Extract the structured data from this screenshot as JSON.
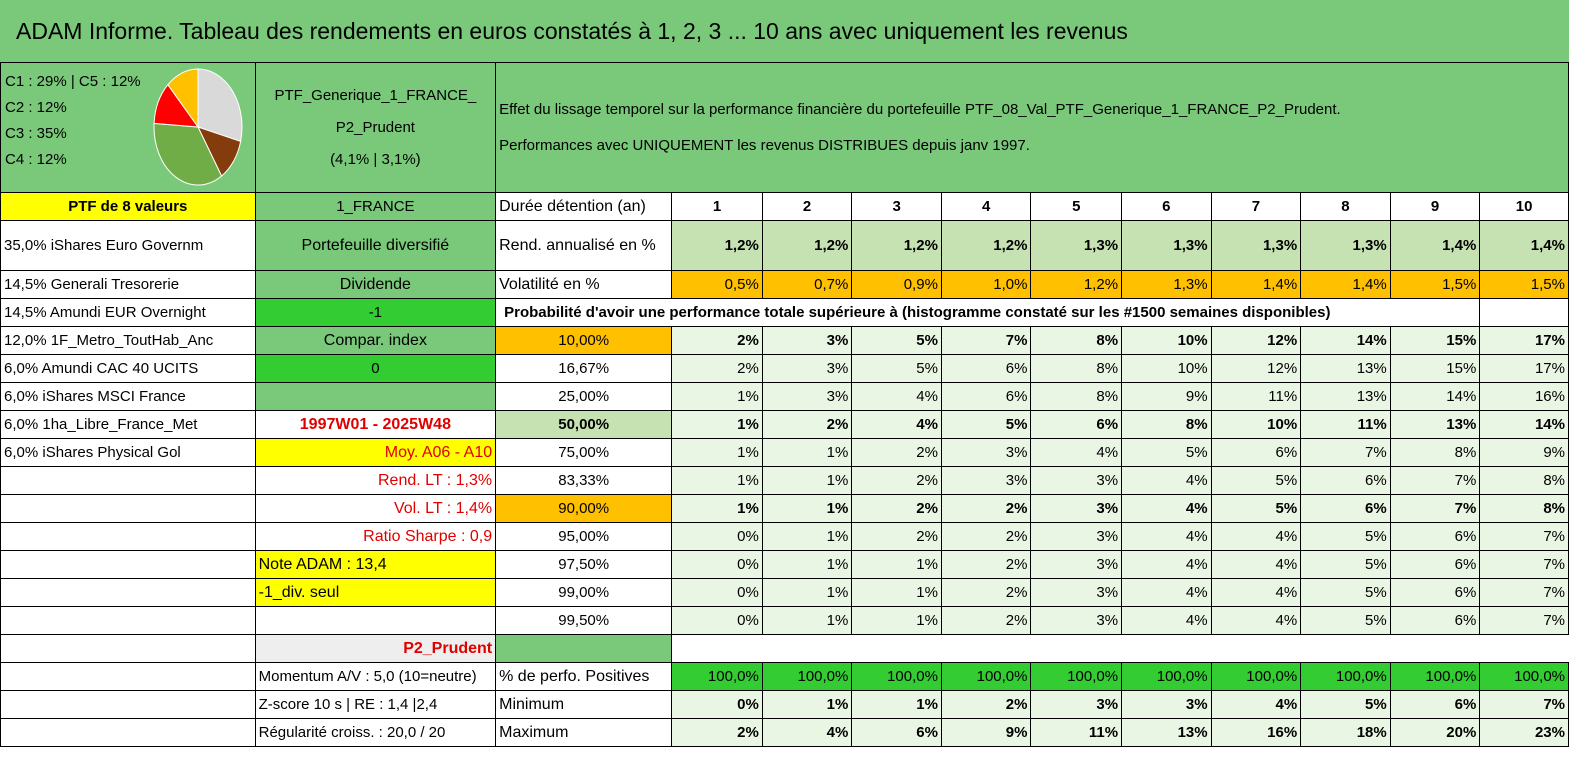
{
  "title": "ADAM Informe. Tableau des rendements en euros constatés à 1, 2, 3 ... 10 ans avec uniquement les revenus",
  "legend": [
    "C1 : 29% | C5 : 12%",
    "C2 : 12%",
    "C3 : 35%",
    "C4 : 12%"
  ],
  "pie": {
    "slices": [
      {
        "name": "C1",
        "value": 29,
        "color": "#d9d9d9"
      },
      {
        "name": "C2",
        "value": 12,
        "color": "#843c0c"
      },
      {
        "name": "C3",
        "value": 35,
        "color": "#70ad47"
      },
      {
        "name": "C4",
        "value": 12,
        "color": "#ff0000"
      },
      {
        "name": "C5",
        "value": 12,
        "color": "#ffc000"
      }
    ]
  },
  "ptf": {
    "name_line1": "PTF_Generique_1_FRANCE_",
    "name_line2": "P2_Prudent",
    "name_line3": "(4,1% | 3,1%)",
    "count": "PTF de 8 valeurs",
    "code": "1_FRANCE"
  },
  "description": {
    "line1": "Effet du lissage temporel sur la performance financière du portefeuille PTF_08_Val_PTF_Generique_1_FRANCE_P2_Prudent.",
    "line2": "Performances avec UNIQUEMENT les revenus DISTRIBUES depuis janv 1997."
  },
  "holdings": [
    "35,0% iShares Euro Governm",
    "14,5% Generali Tresorerie",
    "14,5% Amundi EUR Overnight",
    "12,0% 1F_Metro_ToutHab_Anc",
    "6,0% Amundi CAC 40 UCITS",
    "6,0% iShares MSCI France",
    "6,0% 1ha_Libre_France_Met",
    "6,0% iShares Physical Gol"
  ],
  "info": {
    "portefeuille": "Portefeuille diversifié",
    "dividende": "Dividende",
    "div_value": "-1",
    "compar": "Compar. index",
    "compar_value": "0",
    "period": "1997W01 - 2025W48",
    "moy": "Moy. A06 - A10",
    "rend_lt": "Rend. LT : 1,3%",
    "vol_lt": "Vol. LT : 1,4%",
    "sharpe": "Ratio Sharpe : 0,9",
    "note": "Note ADAM : 13,4",
    "div_seul": "-1_div. seul",
    "profile": "P2_Prudent",
    "momentum": "Momentum A/V : 5,0 (10=neutre)",
    "zscore": "Z-score 10 s | RE : 1,4 |2,4",
    "regularite": "Régularité croiss. : 20,0 / 20"
  },
  "years_label": "Durée détention (an)",
  "years": [
    "1",
    "2",
    "3",
    "4",
    "5",
    "6",
    "7",
    "8",
    "9",
    "10"
  ],
  "rend_label": "Rend. annualisé en %",
  "rend": [
    "1,2%",
    "1,2%",
    "1,2%",
    "1,2%",
    "1,3%",
    "1,3%",
    "1,3%",
    "1,3%",
    "1,4%",
    "1,4%"
  ],
  "vol_label": "Volatilité en %",
  "vol": [
    "0,5%",
    "0,7%",
    "0,9%",
    "1,0%",
    "1,2%",
    "1,3%",
    "1,4%",
    "1,4%",
    "1,5%",
    "1,5%"
  ],
  "prob_label": "Probabilité d'avoir une performance totale supérieure à (histogramme constaté sur les #1500 semaines disponibles)",
  "prob_rows": [
    {
      "pct": "10,00%",
      "values": [
        "2%",
        "3%",
        "5%",
        "7%",
        "8%",
        "10%",
        "12%",
        "14%",
        "15%",
        "17%"
      ]
    },
    {
      "pct": "16,67%",
      "values": [
        "2%",
        "3%",
        "5%",
        "6%",
        "8%",
        "10%",
        "12%",
        "13%",
        "15%",
        "17%"
      ]
    },
    {
      "pct": "25,00%",
      "values": [
        "1%",
        "3%",
        "4%",
        "6%",
        "8%",
        "9%",
        "11%",
        "13%",
        "14%",
        "16%"
      ]
    },
    {
      "pct": "50,00%",
      "values": [
        "1%",
        "2%",
        "4%",
        "5%",
        "6%",
        "8%",
        "10%",
        "11%",
        "13%",
        "14%"
      ]
    },
    {
      "pct": "75,00%",
      "values": [
        "1%",
        "1%",
        "2%",
        "3%",
        "4%",
        "5%",
        "6%",
        "7%",
        "8%",
        "9%"
      ]
    },
    {
      "pct": "83,33%",
      "values": [
        "1%",
        "1%",
        "2%",
        "3%",
        "3%",
        "4%",
        "5%",
        "6%",
        "7%",
        "8%"
      ]
    },
    {
      "pct": "90,00%",
      "values": [
        "1%",
        "1%",
        "2%",
        "2%",
        "3%",
        "4%",
        "5%",
        "6%",
        "7%",
        "8%"
      ]
    },
    {
      "pct": "95,00%",
      "values": [
        "0%",
        "1%",
        "2%",
        "2%",
        "3%",
        "4%",
        "4%",
        "5%",
        "6%",
        "7%"
      ]
    },
    {
      "pct": "97,50%",
      "values": [
        "0%",
        "1%",
        "1%",
        "2%",
        "3%",
        "4%",
        "4%",
        "5%",
        "6%",
        "7%"
      ]
    },
    {
      "pct": "99,00%",
      "values": [
        "0%",
        "1%",
        "1%",
        "2%",
        "3%",
        "4%",
        "4%",
        "5%",
        "6%",
        "7%"
      ]
    },
    {
      "pct": "99,50%",
      "values": [
        "0%",
        "1%",
        "1%",
        "2%",
        "3%",
        "4%",
        "4%",
        "5%",
        "6%",
        "7%"
      ]
    }
  ],
  "pos_label": "% de perfo. Positives",
  "pos": [
    "100,0%",
    "100,0%",
    "100,0%",
    "100,0%",
    "100,0%",
    "100,0%",
    "100,0%",
    "100,0%",
    "100,0%",
    "100,0%"
  ],
  "min_label": "Minimum",
  "min": [
    "0%",
    "1%",
    "1%",
    "2%",
    "3%",
    "3%",
    "4%",
    "5%",
    "6%",
    "7%"
  ],
  "max_label": "Maximum",
  "max": [
    "2%",
    "4%",
    "6%",
    "9%",
    "11%",
    "13%",
    "16%",
    "18%",
    "20%",
    "23%"
  ]
}
